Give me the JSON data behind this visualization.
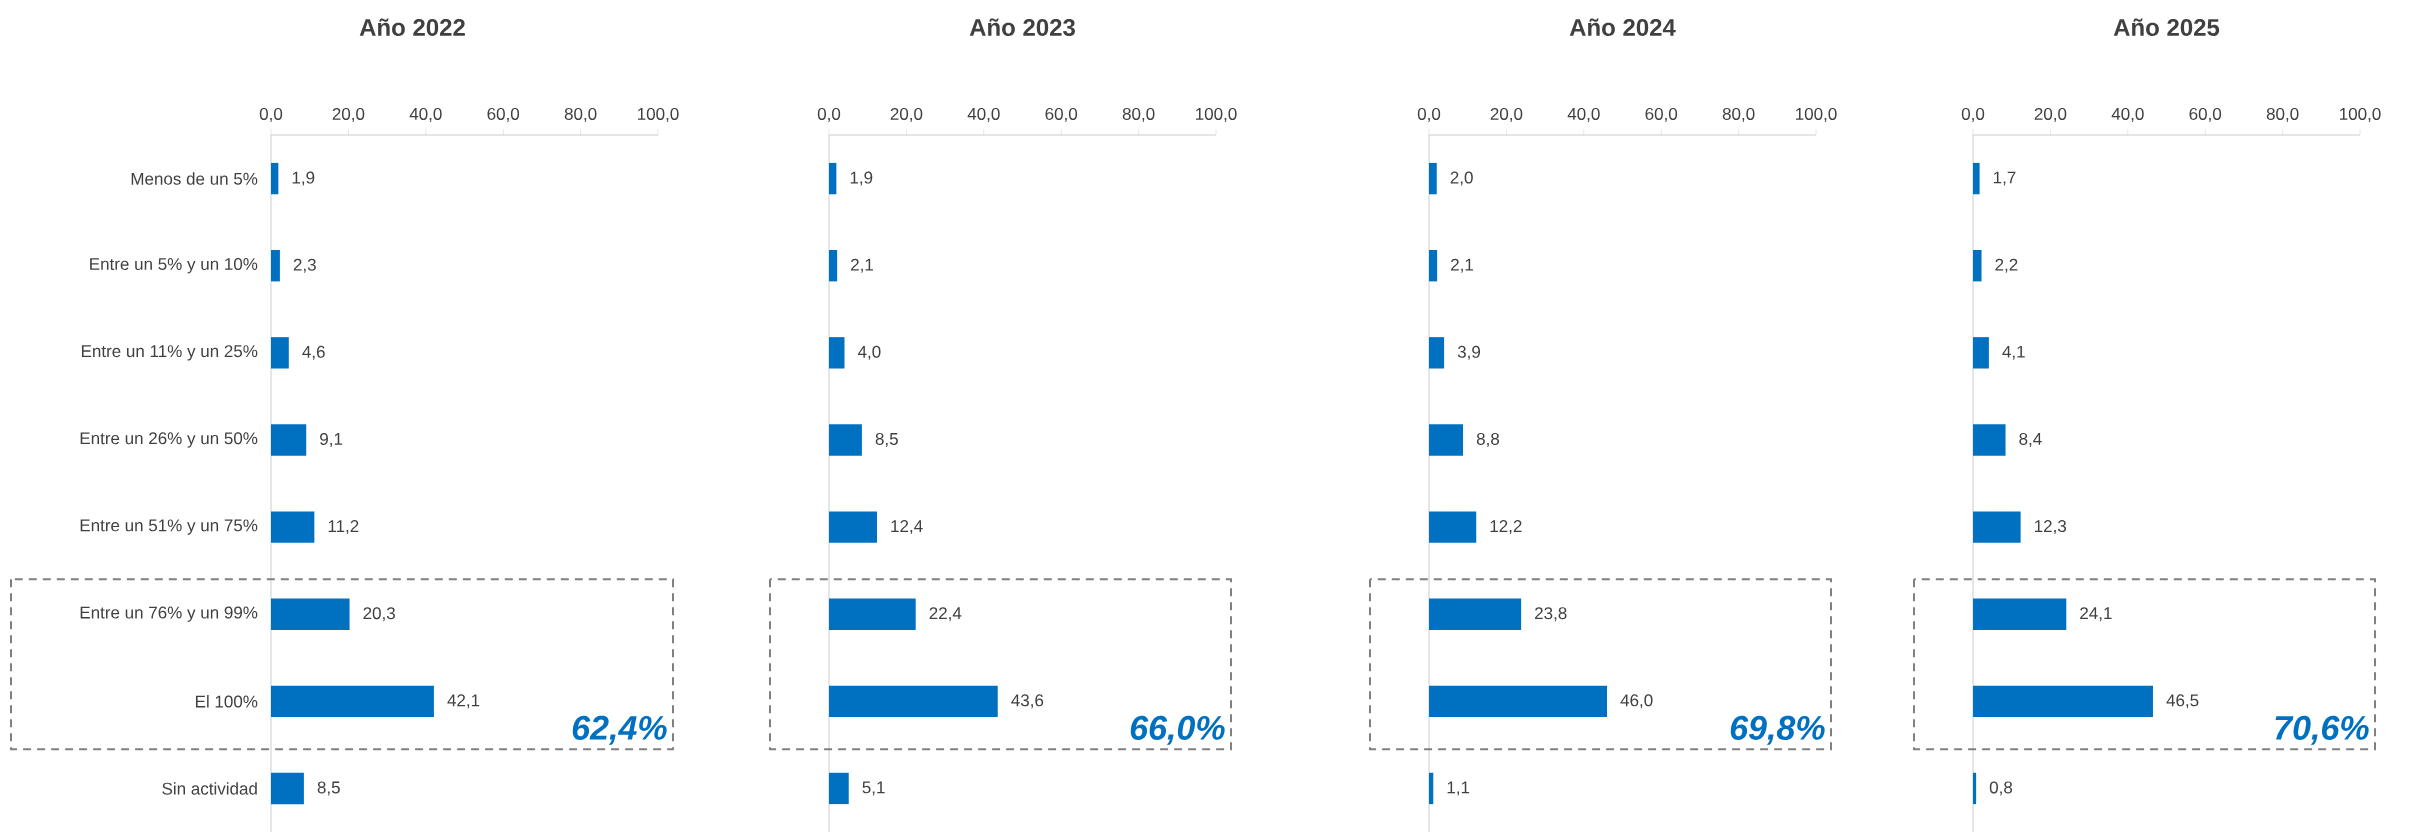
{
  "chart_data": [
    {
      "type": "bar",
      "orientation": "horizontal",
      "title": "Año 2022",
      "categories": [
        "Menos de un 5%",
        "Entre un 5% y un 10%",
        "Entre un 11% y un 25%",
        "Entre un 26% y un 50%",
        "Entre un 51% y un 75%",
        "Entre un 76% y un 99%",
        "El 100%",
        "Sin actividad"
      ],
      "values": [
        1.9,
        2.3,
        4.6,
        9.1,
        11.2,
        20.3,
        42.1,
        8.5
      ],
      "value_labels": [
        "1,9",
        "2,3",
        "4,6",
        "9,1",
        "11,2",
        "20,3",
        "42,1",
        "8,5"
      ],
      "color": "#0070c0",
      "xlim": [
        0,
        100
      ],
      "xticks": [
        {
          "value": 0,
          "label": "0,0"
        },
        {
          "value": 20,
          "label": "20,0"
        },
        {
          "value": 40,
          "label": "40,0"
        },
        {
          "value": 60,
          "label": "60,0"
        },
        {
          "value": 80,
          "label": "80,0"
        },
        {
          "value": 100,
          "label": "100,0"
        }
      ],
      "annotations": [
        "62,4%"
      ]
    },
    {
      "type": "bar",
      "orientation": "horizontal",
      "title": "Año 2023",
      "categories": [
        null,
        null,
        null,
        null,
        null,
        null,
        null,
        null
      ],
      "values": [
        1.9,
        2.1,
        4.0,
        8.5,
        12.4,
        22.4,
        43.6,
        5.1
      ],
      "value_labels": [
        "1,9",
        "2,1",
        "4,0",
        "8,5",
        "12,4",
        "22,4",
        "43,6",
        "5,1"
      ],
      "color": "#0070c0",
      "xlim": [
        0,
        100
      ],
      "xticks": [
        {
          "value": 0,
          "label": "0,0"
        },
        {
          "value": 20,
          "label": "20,0"
        },
        {
          "value": 40,
          "label": "40,0"
        },
        {
          "value": 60,
          "label": "60,0"
        },
        {
          "value": 80,
          "label": "80,0"
        },
        {
          "value": 100,
          "label": "100,0"
        }
      ],
      "tick_labels": "x",
      "annotations": [
        "66,0%"
      ]
    },
    {
      "type": "bar",
      "orientation": "horizontal",
      "title": "Año 2024",
      "categories": [
        null,
        null,
        null,
        null,
        null,
        null,
        null,
        null
      ],
      "values": [
        2.0,
        2.1,
        3.9,
        8.8,
        12.2,
        23.8,
        46.0,
        1.1
      ],
      "value_labels": [
        "2,0",
        "2,1",
        "3,9",
        "8,8",
        "12,2",
        "23,8",
        "46,0",
        "1,1"
      ],
      "color": "#0070c0",
      "xlim": [
        0,
        100
      ],
      "xticks": [
        {
          "value": 0,
          "label": "0,0"
        },
        {
          "value": 20,
          "label": "20,0"
        },
        {
          "value": 40,
          "label": "40,0"
        },
        {
          "value": 60,
          "label": "60,0"
        },
        {
          "value": 80,
          "label": "80,0"
        },
        {
          "value": 100,
          "label": "100,0"
        }
      ],
      "tick_labels": "x",
      "annotations": [
        "69,8%"
      ]
    },
    {
      "type": "bar",
      "orientation": "horizontal",
      "title": "Año 2025",
      "categories": [
        null,
        null,
        null,
        null,
        null,
        null,
        null,
        null
      ],
      "values": [
        1.7,
        2.2,
        4.1,
        8.4,
        12.3,
        24.1,
        46.5,
        0.8
      ],
      "value_labels": [
        "1,7",
        "2,2",
        "4,1",
        "8,4",
        "12,3",
        "24,1",
        "46,5",
        "0,8"
      ],
      "color": "#0070c0",
      "xlim": [
        0,
        100
      ],
      "xticks": [
        {
          "value": 0,
          "label": "0,0"
        },
        {
          "value": 20,
          "label": "20,0"
        },
        {
          "value": 40,
          "label": "40,0"
        },
        {
          "value": 60,
          "label": "60,0"
        },
        {
          "value": 80,
          "label": "80,0"
        },
        {
          "value": 100,
          "label": "100,0"
        }
      ],
      "tick_labels": "x",
      "annotations": [
        "70,6%"
      ]
    }
  ]
}
